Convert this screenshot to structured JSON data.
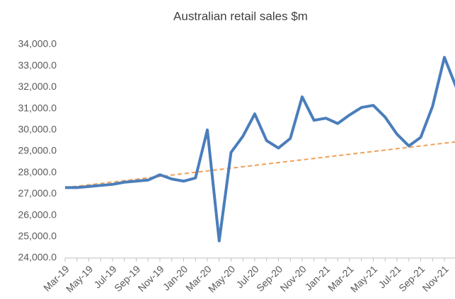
{
  "chart_data": {
    "type": "line",
    "title": "Australian retail sales $m",
    "categories": [
      "Mar-19",
      null,
      "May-19",
      null,
      "Jul-19",
      null,
      "Sep-19",
      null,
      "Nov-19",
      null,
      "Jan-20",
      null,
      "Mar-20",
      null,
      "May-20",
      null,
      "Jul-20",
      null,
      "Sep-20",
      null,
      "Nov-20",
      null,
      "Jan-21",
      null,
      "Mar-21",
      null,
      "May-21",
      null,
      "Jul-21",
      null,
      "Sep-21",
      null,
      "Nov-21",
      null
    ],
    "series": [
      {
        "color": "#4a7ebb",
        "style": "solid",
        "values": [
          27300,
          27300,
          27350,
          27400,
          27450,
          27550,
          27600,
          27650,
          27900,
          27700,
          27600,
          27750,
          30000,
          24800,
          28950,
          29700,
          30750,
          29500,
          29150,
          29600,
          31550,
          30450,
          30550,
          30300,
          30700,
          31050,
          31150,
          30600,
          29800,
          29250,
          29650,
          31100,
          33400,
          32000
        ]
      },
      {
        "color": "#f0a05a",
        "style": "dashed",
        "values": [
          27300,
          27365,
          27430,
          27495,
          27560,
          27625,
          27690,
          27755,
          27820,
          27885,
          27950,
          28015,
          28080,
          28145,
          28210,
          28275,
          28340,
          28405,
          28470,
          28535,
          28600,
          28665,
          28730,
          28795,
          28860,
          28925,
          28990,
          29055,
          29120,
          29185,
          29250,
          29315,
          29380,
          29445
        ]
      }
    ],
    "ylim": [
      24000,
      34000
    ],
    "yticks": [
      {
        "value": 24000,
        "label": "24,000.0"
      },
      {
        "value": 25000,
        "label": "25,000.0"
      },
      {
        "value": 26000,
        "label": "26,000.0"
      },
      {
        "value": 27000,
        "label": "27,000.0"
      },
      {
        "value": 28000,
        "label": "28,000.0"
      },
      {
        "value": 29000,
        "label": "29,000.0"
      },
      {
        "value": 30000,
        "label": "30,000.0"
      },
      {
        "value": 31000,
        "label": "31,000.0"
      },
      {
        "value": 32000,
        "label": "32,000.0"
      },
      {
        "value": 33000,
        "label": "33,000.0"
      },
      {
        "value": 34000,
        "label": "34,000.0"
      }
    ],
    "grid": false
  }
}
